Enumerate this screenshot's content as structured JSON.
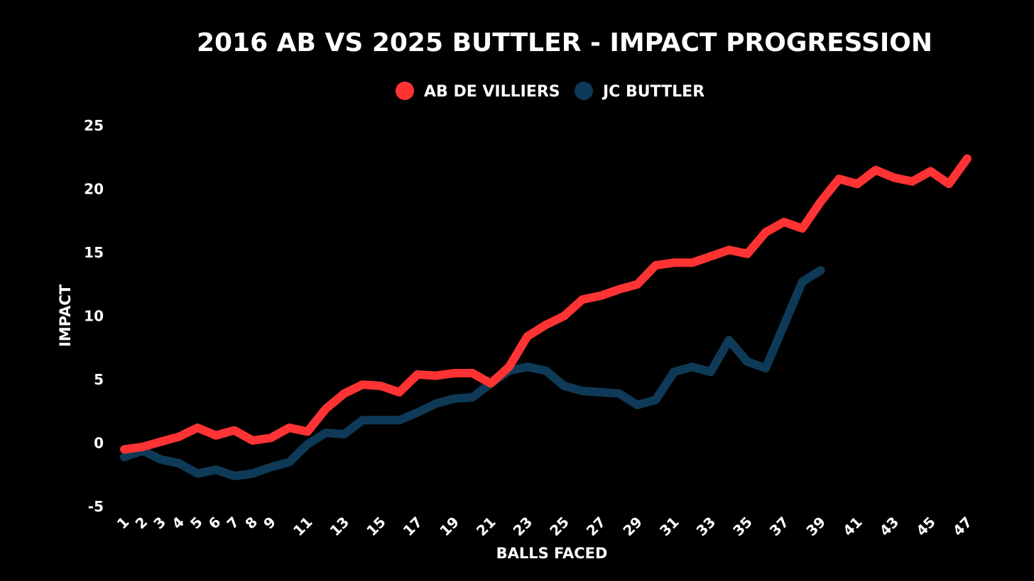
{
  "chart_data": {
    "type": "line",
    "title": "2016 AB VS 2025 BUTTLER - IMPACT PROGRESSION",
    "xlabel": "BALLS FACED",
    "ylabel": "IMPACT",
    "ylim": [
      -5,
      25
    ],
    "yticks": [
      -5,
      0,
      5,
      10,
      15,
      20,
      25
    ],
    "xlim": [
      1,
      47
    ],
    "xticks": [
      1,
      2,
      3,
      4,
      5,
      6,
      7,
      8,
      9,
      11,
      13,
      15,
      17,
      19,
      21,
      23,
      25,
      27,
      29,
      31,
      33,
      35,
      37,
      39,
      41,
      43,
      45,
      47
    ],
    "grid": false,
    "legend_position": "top-center",
    "series": [
      {
        "name": "AB DE VILLIERS",
        "color": "#ff3333",
        "x": [
          1,
          2,
          3,
          4,
          5,
          6,
          7,
          8,
          9,
          10,
          11,
          12,
          13,
          14,
          15,
          16,
          17,
          18,
          19,
          20,
          21,
          22,
          23,
          24,
          25,
          26,
          27,
          28,
          29,
          30,
          31,
          32,
          33,
          34,
          35,
          36,
          37,
          38,
          39,
          40,
          41,
          42,
          43,
          44,
          45,
          46,
          47
        ],
        "values": [
          -0.5,
          -0.3,
          0.1,
          0.5,
          1.2,
          0.6,
          1.0,
          0.2,
          0.4,
          1.2,
          0.9,
          2.7,
          3.9,
          4.6,
          4.5,
          4.0,
          5.4,
          5.3,
          5.5,
          5.5,
          4.7,
          6.0,
          8.4,
          9.3,
          10.0,
          11.3,
          11.6,
          12.1,
          12.5,
          14.0,
          14.2,
          14.2,
          14.7,
          15.2,
          14.9,
          16.6,
          17.4,
          16.9,
          19.0,
          20.8,
          20.4,
          21.5,
          20.9,
          20.6,
          21.4,
          20.4,
          22.4
        ]
      },
      {
        "name": "JC BUTTLER",
        "color": "#0e3a57",
        "x": [
          1,
          2,
          3,
          4,
          5,
          6,
          7,
          8,
          9,
          10,
          11,
          12,
          13,
          14,
          15,
          16,
          17,
          18,
          19,
          20,
          21,
          22,
          23,
          24,
          25,
          26,
          27,
          28,
          29,
          30,
          31,
          32,
          33,
          34,
          35,
          36,
          37,
          38,
          39
        ],
        "values": [
          -1.1,
          -0.6,
          -1.3,
          -1.6,
          -2.4,
          -2.1,
          -2.6,
          -2.4,
          -1.9,
          -1.5,
          -0.1,
          0.8,
          0.7,
          1.8,
          1.8,
          1.8,
          2.4,
          3.1,
          3.5,
          3.6,
          4.7,
          5.7,
          6.0,
          5.7,
          4.5,
          4.1,
          4.0,
          3.9,
          3.0,
          3.4,
          5.6,
          6.0,
          5.6,
          8.1,
          6.4,
          5.9,
          9.3,
          12.7,
          13.6
        ]
      }
    ]
  }
}
